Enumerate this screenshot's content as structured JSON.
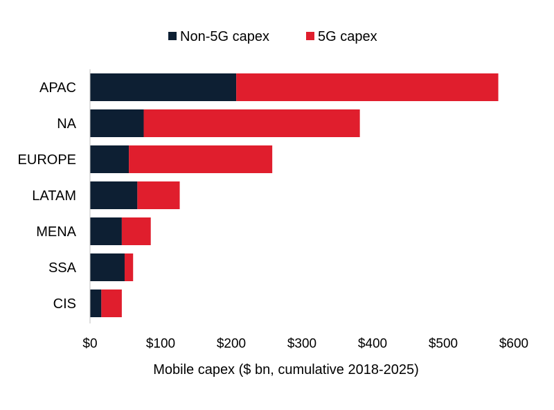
{
  "chart_data": {
    "type": "bar",
    "orientation": "horizontal",
    "stacked": true,
    "title": "",
    "xlabel": "Mobile capex ($ bn, cumulative 2018-2025)",
    "ylabel": "",
    "categories": [
      "APAC",
      "NA",
      "EUROPE",
      "LATAM",
      "MENA",
      "SSA",
      "CIS"
    ],
    "series": [
      {
        "name": "Non-5G capex",
        "color": "#0d1f33",
        "values": [
          207,
          76,
          55,
          67,
          45,
          49,
          16
        ]
      },
      {
        "name": "5G capex",
        "color": "#e01e2d",
        "values": [
          371,
          306,
          203,
          60,
          41,
          12,
          29
        ]
      }
    ],
    "xlim": [
      0,
      600
    ],
    "x_ticks": [
      0,
      100,
      200,
      300,
      400,
      500,
      600
    ],
    "x_tick_labels": [
      "$0",
      "$100",
      "$200",
      "$300",
      "$400",
      "$500",
      "$600"
    ],
    "grid": false,
    "legend_position": "top-center"
  }
}
